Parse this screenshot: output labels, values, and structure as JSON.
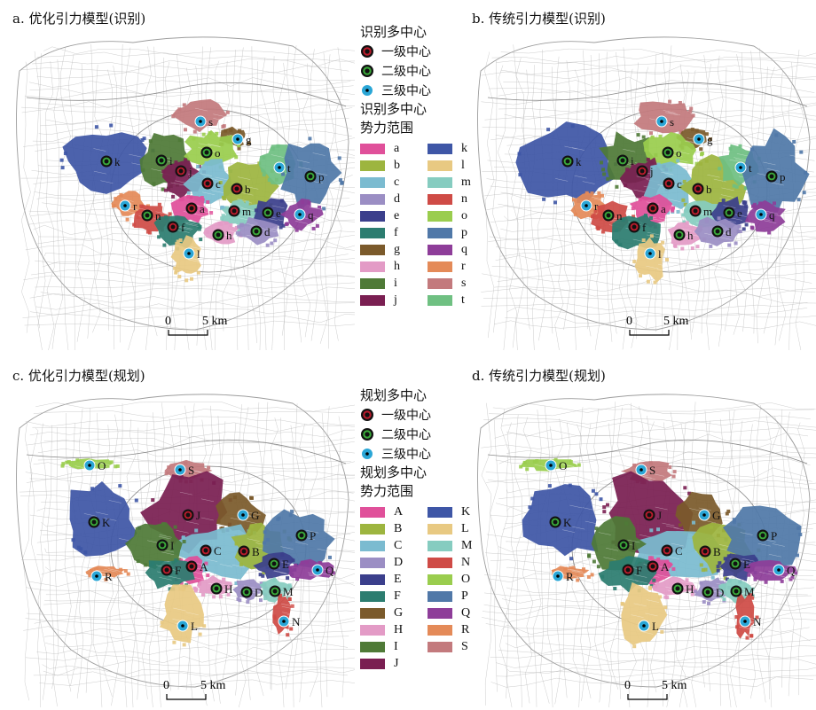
{
  "colors": {
    "a": "#e0509a",
    "b": "#9db53f",
    "c": "#7bbbd0",
    "d": "#9b8ec4",
    "e": "#3b3f8c",
    "f": "#2c7d70",
    "g": "#7b5a2b",
    "h": "#e39bc6",
    "i": "#4f7a37",
    "j": "#7a1f52",
    "k": "#3e56a6",
    "l": "#e8c982",
    "m": "#86ccc0",
    "n": "#cf4b46",
    "o": "#9acd4e",
    "p": "#5078a8",
    "q": "#8e3d99",
    "r": "#e48a58",
    "s": "#c37a7d",
    "t": "#6fc082",
    "level1": "#b81c2c",
    "level2": "#3aa83a",
    "level3": "#2aa6d6",
    "road": "#9c9c9c"
  },
  "panels": [
    {
      "title": "a. 优化引力模型(识别)",
      "scale_zero": "0",
      "scale_label": "5 km"
    },
    {
      "title": "b. 传统引力模型(识别)",
      "scale_zero": "0",
      "scale_label": "5 km"
    },
    {
      "title": "c. 优化引力模型(规划)",
      "scale_zero": "0",
      "scale_label": "5 km"
    },
    {
      "title": "d. 传统引力模型(规划)",
      "scale_zero": "0",
      "scale_label": "5 km"
    }
  ],
  "legends": [
    {
      "title": "识别多中心",
      "levels": [
        "一级中心",
        "二级中心",
        "三级中心"
      ],
      "range_title_1": "识别多中心",
      "range_title_2": "势力范围",
      "items": [
        "a",
        "b",
        "c",
        "d",
        "e",
        "f",
        "g",
        "h",
        "i",
        "j",
        "k",
        "l",
        "m",
        "n",
        "o",
        "p",
        "q",
        "r",
        "s",
        "t"
      ]
    },
    {
      "title": "规划多中心",
      "levels": [
        "一级中心",
        "二级中心",
        "三级中心"
      ],
      "range_title_1": "规划多中心",
      "range_title_2": "势力范围",
      "items": [
        "A",
        "B",
        "C",
        "D",
        "E",
        "F",
        "G",
        "H",
        "I",
        "J",
        "K",
        "L",
        "M",
        "N",
        "O",
        "P",
        "Q",
        "R",
        "S"
      ]
    }
  ],
  "centers_top": [
    {
      "label": "s",
      "level": 3
    },
    {
      "label": "g",
      "level": 3
    },
    {
      "label": "i",
      "level": 2
    },
    {
      "label": "o",
      "level": 2
    },
    {
      "label": "k",
      "level": 2
    },
    {
      "label": "j",
      "level": 1
    },
    {
      "label": "c",
      "level": 1
    },
    {
      "label": "b",
      "level": 1
    },
    {
      "label": "t",
      "level": 3
    },
    {
      "label": "p",
      "level": 2
    },
    {
      "label": "r",
      "level": 3
    },
    {
      "label": "n",
      "level": 2
    },
    {
      "label": "a",
      "level": 1
    },
    {
      "label": "m",
      "level": 1
    },
    {
      "label": "e",
      "level": 2
    },
    {
      "label": "q",
      "level": 3
    },
    {
      "label": "f",
      "level": 1
    },
    {
      "label": "h",
      "level": 2
    },
    {
      "label": "d",
      "level": 2
    },
    {
      "label": "l",
      "level": 3
    }
  ],
  "centers_bottom": [
    {
      "label": "O",
      "level": 3
    },
    {
      "label": "S",
      "level": 3
    },
    {
      "label": "J",
      "level": 1
    },
    {
      "label": "G",
      "level": 3
    },
    {
      "label": "K",
      "level": 2
    },
    {
      "label": "I",
      "level": 2
    },
    {
      "label": "C",
      "level": 1
    },
    {
      "label": "B",
      "level": 1
    },
    {
      "label": "P",
      "level": 2
    },
    {
      "label": "A",
      "level": 1
    },
    {
      "label": "F",
      "level": 1
    },
    {
      "label": "E",
      "level": 2
    },
    {
      "label": "Q",
      "level": 3
    },
    {
      "label": "R",
      "level": 3
    },
    {
      "label": "H",
      "level": 2
    },
    {
      "label": "D",
      "level": 2
    },
    {
      "label": "M",
      "level": 2
    },
    {
      "label": "N",
      "level": 3
    },
    {
      "label": "L",
      "level": 3
    }
  ]
}
